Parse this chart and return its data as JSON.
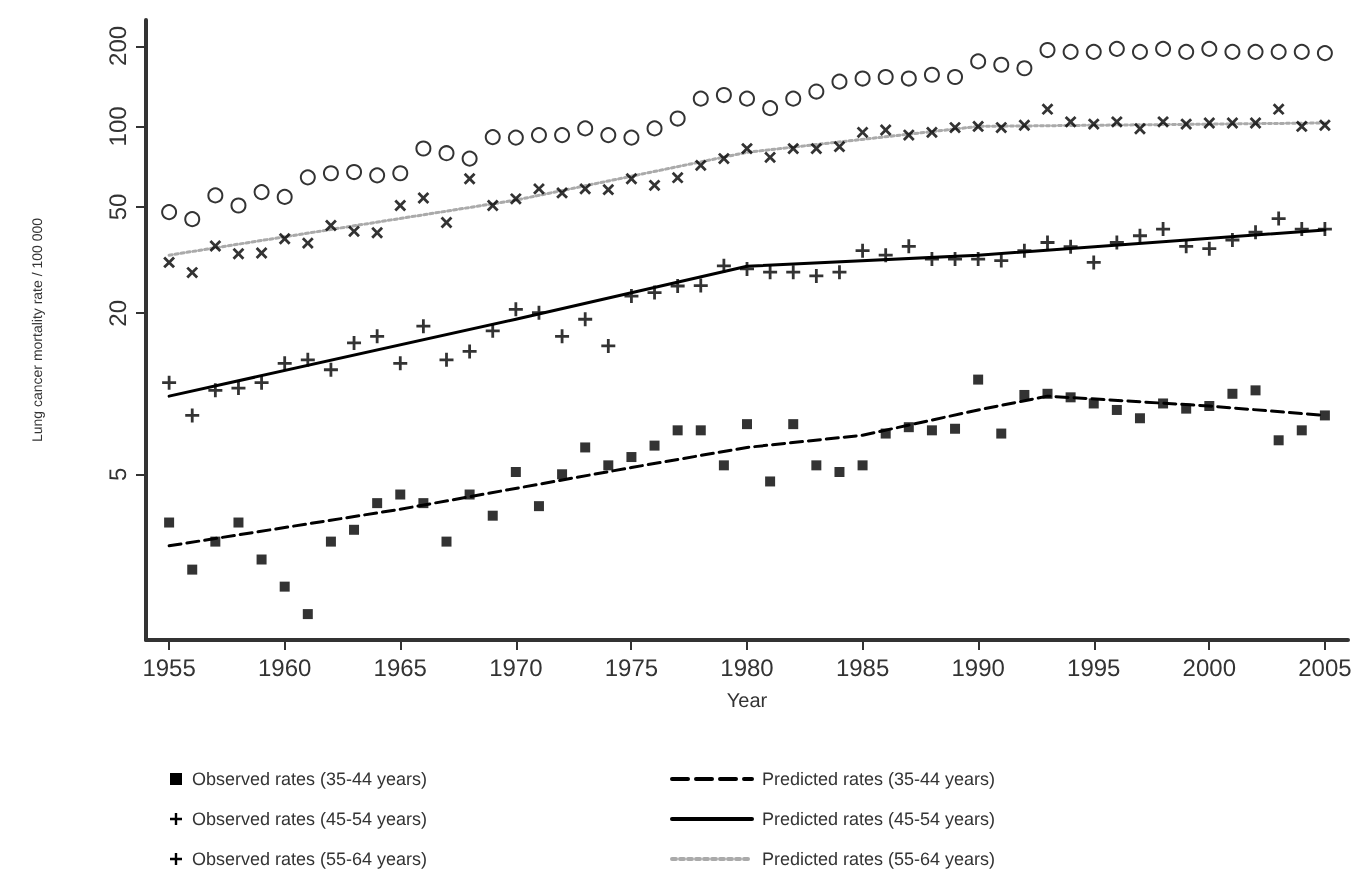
{
  "chart_data": {
    "type": "scatter",
    "xlabel": "Year",
    "ylabel": "Lung cancer mortality rate / 100 000",
    "log": "y",
    "xlim": [
      1954,
      2006
    ],
    "xticks": [
      1955,
      1960,
      1965,
      1970,
      1975,
      1980,
      1985,
      1990,
      1995,
      2000,
      2005
    ],
    "ylim": [
      1.2,
      250
    ],
    "yticks": [
      5,
      20,
      50,
      100,
      200
    ],
    "grid": false,
    "legend": "bottom",
    "x": [
      1955,
      1956,
      1957,
      1958,
      1959,
      1960,
      1961,
      1962,
      1963,
      1964,
      1965,
      1966,
      1967,
      1968,
      1969,
      1970,
      1971,
      1972,
      1973,
      1974,
      1975,
      1976,
      1977,
      1978,
      1979,
      1980,
      1981,
      1982,
      1983,
      1984,
      1985,
      1986,
      1987,
      1988,
      1989,
      1990,
      1991,
      1992,
      1993,
      1994,
      1995,
      1996,
      1997,
      1998,
      1999,
      2000,
      2001,
      2002,
      2003,
      2004,
      2005
    ],
    "series": [
      {
        "name": "Observed rates (35-44 years)",
        "marker": "square",
        "color": "#000000",
        "values": [
          3.3,
          2.2,
          2.8,
          3.3,
          2.4,
          1.9,
          1.5,
          2.8,
          3.1,
          3.9,
          4.2,
          3.9,
          2.8,
          4.2,
          3.5,
          5.1,
          3.8,
          5.0,
          6.3,
          5.4,
          5.8,
          6.4,
          7.3,
          7.3,
          5.4,
          7.7,
          4.7,
          7.7,
          5.4,
          5.1,
          5.4,
          7.1,
          7.5,
          7.3,
          7.4,
          11.3,
          7.1,
          9.9,
          10.0,
          9.7,
          9.2,
          8.7,
          8.1,
          9.2,
          8.8,
          9.0,
          10.0,
          10.3,
          6.7,
          7.3,
          8.3
        ]
      },
      {
        "name": "Observed rates (45-54 years)",
        "marker": "plus",
        "color": "#000000",
        "values": [
          11.0,
          8.3,
          10.3,
          10.5,
          11.0,
          13.0,
          13.4,
          12.3,
          15.5,
          16.4,
          13.0,
          17.9,
          13.4,
          14.4,
          17.2,
          20.7,
          20.1,
          16.4,
          19.0,
          15.1,
          23.2,
          23.9,
          25.3,
          25.4,
          30.1,
          29.3,
          28.5,
          28.5,
          27.6,
          28.5,
          34.3,
          33.0,
          35.6,
          31.9,
          31.9,
          31.9,
          31.5,
          34.3,
          36.8,
          35.5,
          31.0,
          36.8,
          39.0,
          41.3,
          35.6,
          34.9,
          37.6,
          40.2,
          45.2,
          41.3,
          41.3
        ]
      },
      {
        "name": "Observed rates (55-64 years)",
        "marker": "cross",
        "color": "#000000",
        "values": [
          31,
          28.4,
          35.7,
          33.4,
          33.6,
          38,
          36.6,
          42.6,
          40.5,
          40,
          50.6,
          54,
          43.7,
          63.7,
          50.6,
          53.6,
          58.4,
          56.4,
          58.4,
          58,
          63.7,
          60.2,
          64.3,
          71.5,
          75.8,
          82.6,
          76.6,
          82.6,
          82.6,
          84,
          95,
          97,
          92.8,
          95,
          99,
          100,
          99,
          101,
          116,
          104,
          102,
          104,
          98,
          104,
          102,
          103,
          103,
          103,
          116,
          100,
          101
        ]
      },
      {
        "marker": "circle",
        "color": "#000000",
        "values": [
          47.8,
          45,
          55.2,
          50.6,
          56.8,
          54.5,
          64.5,
          66.8,
          67.5,
          65.6,
          66.8,
          82.7,
          79.4,
          75.8,
          91.2,
          90.8,
          92.8,
          92.8,
          98.3,
          92.8,
          90.8,
          98.3,
          107,
          127,
          131,
          127,
          117,
          127,
          135,
          147,
          151,
          153,
          151,
          156,
          153,
          175,
          170,
          165,
          193,
          190,
          190,
          195,
          190,
          195,
          190,
          195,
          190,
          190,
          190,
          190,
          188
        ]
      },
      {
        "name": "Predicted rates (35-44 years)",
        "type": "line",
        "line_style": "dashed",
        "marker": "none",
        "color": "#000000",
        "x": [
          1955,
          1965,
          1975,
          1980,
          1985,
          1990,
          1993,
          2000,
          2005
        ],
        "values": [
          2.7,
          3.7,
          5.3,
          6.3,
          7.0,
          8.7,
          9.8,
          9.0,
          8.3
        ]
      },
      {
        "name": "Predicted rates (45-54 years)",
        "type": "line",
        "line_style": "solid",
        "marker": "none",
        "color": "#000000",
        "x": [
          1955,
          1970,
          1980,
          1990,
          2005
        ],
        "values": [
          9.8,
          19,
          30,
          33,
          41
        ]
      },
      {
        "name": "Predicted rates (55-64 years)",
        "type": "line",
        "line_style": "dotted",
        "marker": "none",
        "color": "#aaaaaa",
        "x": [
          1955,
          1970,
          1980,
          1990,
          2005
        ],
        "values": [
          33,
          53,
          80,
          100,
          103
        ]
      }
    ]
  }
}
